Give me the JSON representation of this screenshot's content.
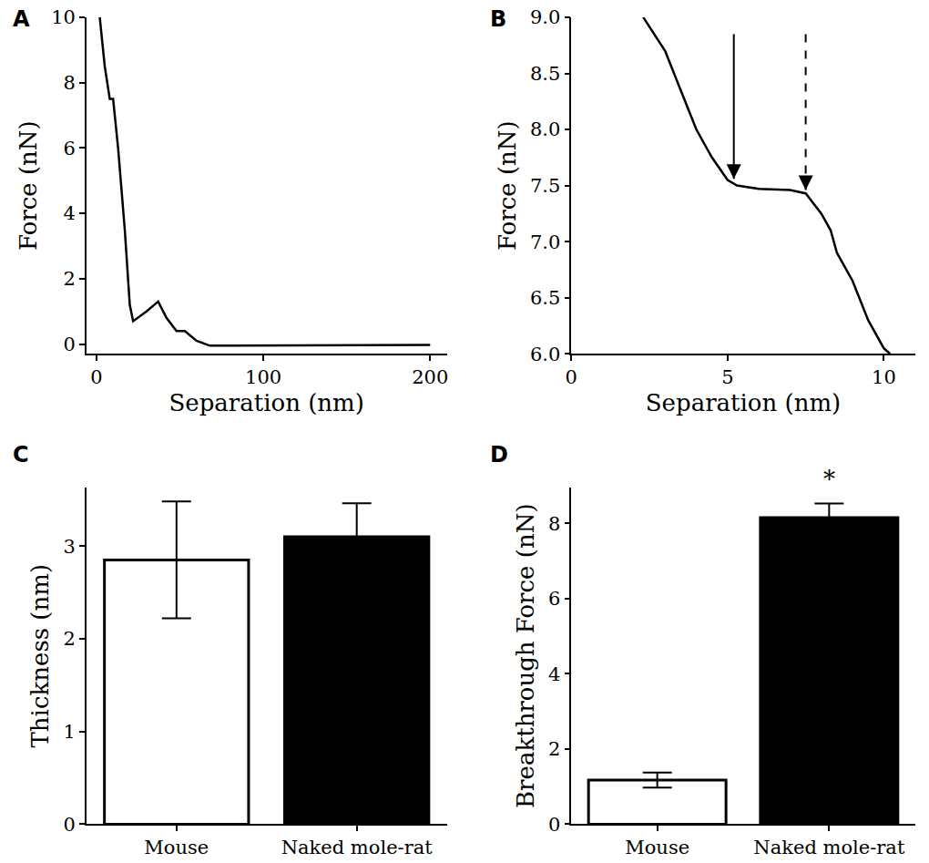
{
  "chart_data": [
    {
      "title": "A",
      "type": "line",
      "x_label": "Separation (nm)",
      "y_label": "Force (nN)",
      "x": [
        2,
        5,
        8,
        10,
        13,
        17,
        20,
        22,
        30,
        37,
        42,
        48,
        53,
        60,
        68,
        80,
        100,
        150,
        200
      ],
      "values": [
        10,
        8.5,
        7.5,
        7.5,
        6,
        3.5,
        1.2,
        0.7,
        1,
        1.3,
        0.8,
        0.4,
        0.4,
        0.1,
        -0.05,
        -0.05,
        -0.05,
        -0.05,
        -0.03
      ],
      "color": "#000000",
      "xlim": [
        -6,
        210
      ],
      "xticks": [
        0,
        100,
        200
      ],
      "ylim": [
        -0.3,
        10
      ],
      "yticks": [
        0,
        2,
        4,
        6,
        8,
        10
      ],
      "grid": false
    },
    {
      "title": "B",
      "type": "line",
      "x_label": "Separation (nm)",
      "y_label": "Force (nN)",
      "x": [
        2.3,
        3,
        3.5,
        4,
        4.5,
        5,
        5.3,
        6,
        7,
        7.5,
        8,
        8.3,
        8.5,
        9,
        9.5,
        10,
        10.2
      ],
      "values": [
        9,
        8.7,
        8.35,
        8,
        7.75,
        7.55,
        7.5,
        7.47,
        7.46,
        7.43,
        7.25,
        7.1,
        6.9,
        6.65,
        6.3,
        6.05,
        6
      ],
      "color": "#000000",
      "xlim": [
        0,
        11
      ],
      "xticks": [
        0,
        5,
        10
      ],
      "ylim": [
        6,
        9
      ],
      "yticks": [
        {
          "value": 6,
          "label": "6.0"
        },
        6.5,
        {
          "value": 7,
          "label": "7.0"
        },
        7.5,
        {
          "value": 8,
          "label": "8.0"
        },
        8.5,
        {
          "value": 9,
          "label": "9.0"
        }
      ],
      "arrows": [
        {
          "x": 5.2,
          "y_start": 8.85,
          "y_end": 7.56,
          "line_style": "solid"
        },
        {
          "x": 7.5,
          "y_start": 8.85,
          "y_end": 7.46,
          "line_style": "dashed"
        }
      ],
      "grid": false
    },
    {
      "title": "C",
      "type": "bar",
      "y_label": "Thickness (nm)",
      "categories": [
        "Mouse",
        "Naked mole-rat"
      ],
      "values": [
        2.85,
        3.1
      ],
      "errors": [
        0.63,
        0.36
      ],
      "colors": [
        "#ffffff",
        "#000000"
      ],
      "ylim": [
        0,
        3.63
      ],
      "yticks": [
        0,
        1,
        2,
        3
      ],
      "grid": false
    },
    {
      "title": "D",
      "type": "bar",
      "y_label": "Breakthrough Force (nN)",
      "categories": [
        "Mouse",
        "Naked mole-rat"
      ],
      "values": [
        1.17,
        8.15
      ],
      "errors": [
        0.2,
        0.38
      ],
      "colors": [
        "#ffffff",
        "#000000"
      ],
      "ylim": [
        0,
        8.95
      ],
      "yticks": [
        0,
        2,
        4,
        6,
        8
      ],
      "annotations": [
        {
          "category": "Naked mole-rat",
          "y": 8.75,
          "text": "*"
        }
      ],
      "grid": false
    }
  ]
}
